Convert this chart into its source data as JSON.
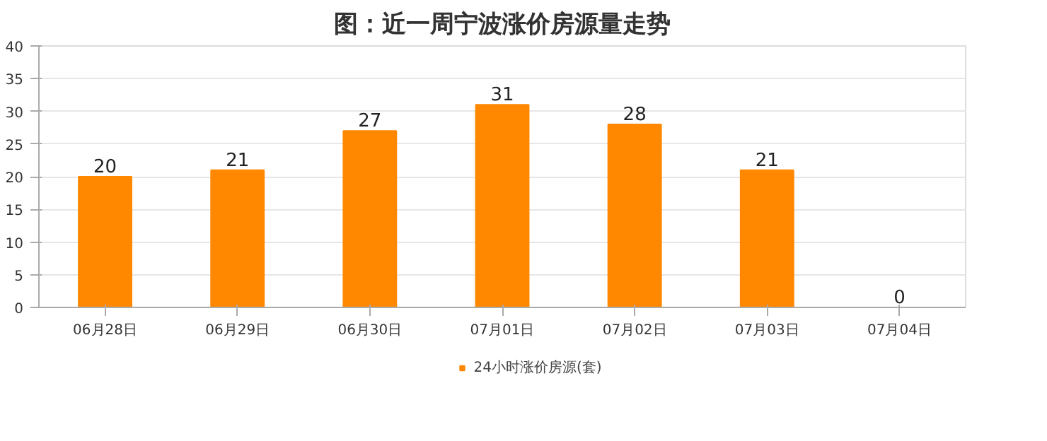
{
  "chart_data": {
    "type": "bar",
    "title": "图：近一周宁波涨价房源量走势",
    "categories": [
      "06月28日",
      "06月29日",
      "06月30日",
      "07月01日",
      "07月02日",
      "07月03日",
      "07月04日"
    ],
    "series": [
      {
        "name": "24小时涨价房源(套)",
        "color": "#ff8800",
        "values": [
          20,
          21,
          27,
          31,
          28,
          21,
          0
        ]
      }
    ],
    "ylim": [
      0,
      40
    ],
    "yticks": [
      0,
      5,
      10,
      15,
      20,
      25,
      30,
      35,
      40
    ],
    "grid": "y",
    "legend": "bottom",
    "data_labels": true
  }
}
